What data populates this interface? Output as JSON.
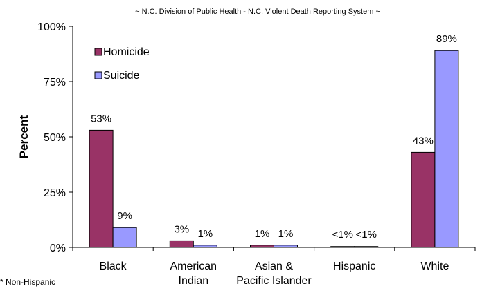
{
  "chart_data": {
    "type": "bar",
    "title": "~ N.C. Division of Public Health - N.C. Violent Death Reporting System ~",
    "ylabel": "Percent",
    "xlabel": "",
    "ylim": [
      0,
      100
    ],
    "y_ticks": [
      0,
      25,
      50,
      75,
      100
    ],
    "y_tick_labels": [
      "0%",
      "25%",
      "50%",
      "75%",
      "100%"
    ],
    "grid": false,
    "legend_position": "top-left",
    "categories": [
      [
        "Black"
      ],
      [
        "American",
        "Indian"
      ],
      [
        "Asian &",
        "Pacific Islander"
      ],
      [
        "Hispanic"
      ],
      [
        "White"
      ]
    ],
    "series": [
      {
        "name": "Homicide",
        "color": "#993366",
        "values": [
          53,
          3,
          1,
          0.4,
          43
        ],
        "labels": [
          "53%",
          "3%",
          "1%",
          "<1%",
          "43%"
        ]
      },
      {
        "name": "Suicide",
        "color": "#9999ff",
        "values": [
          9,
          1,
          1,
          0.4,
          89
        ],
        "labels": [
          "9%",
          "1%",
          "1%",
          "<1%",
          "89%"
        ]
      }
    ],
    "footnote": "* Non-Hispanic"
  }
}
